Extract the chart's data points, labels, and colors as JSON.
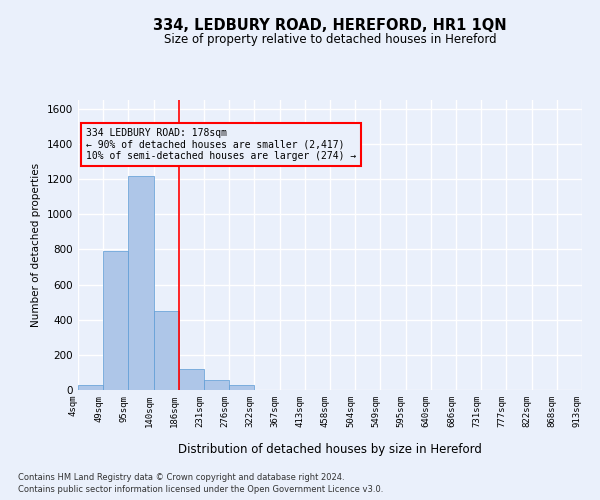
{
  "title": "334, LEDBURY ROAD, HEREFORD, HR1 1QN",
  "subtitle": "Size of property relative to detached houses in Hereford",
  "xlabel": "Distribution of detached houses by size in Hereford",
  "ylabel": "Number of detached properties",
  "footer_line1": "Contains HM Land Registry data © Crown copyright and database right 2024.",
  "footer_line2": "Contains public sector information licensed under the Open Government Licence v3.0.",
  "bin_labels": [
    "4sqm",
    "49sqm",
    "95sqm",
    "140sqm",
    "186sqm",
    "231sqm",
    "276sqm",
    "322sqm",
    "367sqm",
    "413sqm",
    "458sqm",
    "504sqm",
    "549sqm",
    "595sqm",
    "640sqm",
    "686sqm",
    "731sqm",
    "777sqm",
    "822sqm",
    "868sqm",
    "913sqm"
  ],
  "bar_values": [
    30,
    790,
    1215,
    450,
    120,
    55,
    30,
    0,
    0,
    0,
    0,
    0,
    0,
    0,
    0,
    0,
    0,
    0,
    0,
    0
  ],
  "bar_color": "#aec6e8",
  "bar_edge_color": "#5b9bd5",
  "ylim": [
    0,
    1650
  ],
  "yticks": [
    0,
    200,
    400,
    600,
    800,
    1000,
    1200,
    1400,
    1600
  ],
  "red_line_x": 4,
  "annotation_text_line1": "334 LEDBURY ROAD: 178sqm",
  "annotation_text_line2": "← 90% of detached houses are smaller (2,417)",
  "annotation_text_line3": "10% of semi-detached houses are larger (274) →",
  "bg_color": "#eaf0fb",
  "grid_color": "#ffffff",
  "grid_linewidth": 1.0
}
